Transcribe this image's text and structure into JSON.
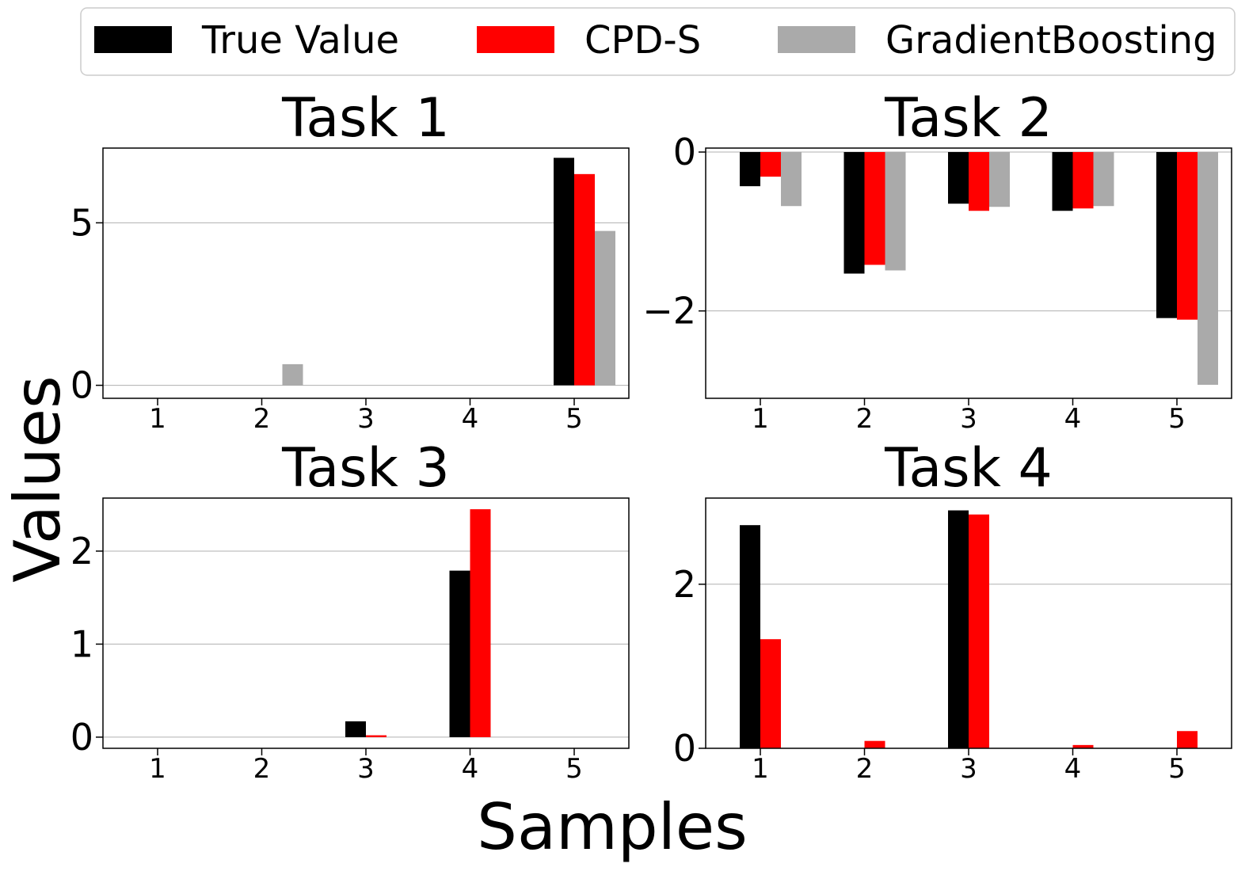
{
  "chart_data": {
    "type": "bar",
    "xlabel": "Samples",
    "ylabel": "Values",
    "categories": [
      "1",
      "2",
      "3",
      "4",
      "5"
    ],
    "series_names": [
      "True Value",
      "CPD-S",
      "GradientBoosting"
    ],
    "colors": {
      "True Value": "#000000",
      "CPD-S": "#ff0000",
      "GradientBoosting": "#aaaaaa"
    },
    "legend_position": "top",
    "grid": "horizontal",
    "panels": [
      {
        "title": "Task 1",
        "ylim": [
          -0.4,
          7.3
        ],
        "yticks": [
          {
            "value": 0,
            "label": "0"
          },
          {
            "value": 5,
            "label": "5"
          }
        ],
        "series": [
          {
            "name": "True Value",
            "values": [
              0,
              0,
              0,
              0,
              7.0
            ]
          },
          {
            "name": "CPD-S",
            "values": [
              0,
              0,
              0,
              0,
              6.5
            ]
          },
          {
            "name": "GradientBoosting",
            "values": [
              0,
              0.65,
              0,
              0,
              4.75
            ]
          }
        ]
      },
      {
        "title": "Task 2",
        "ylim": [
          -3.1,
          0.05
        ],
        "yticks": [
          {
            "value": 0,
            "label": "0"
          },
          {
            "value": -2,
            "label": "−2"
          }
        ],
        "series": [
          {
            "name": "True Value",
            "values": [
              -0.43,
              -1.53,
              -0.65,
              -0.74,
              -2.09
            ]
          },
          {
            "name": "CPD-S",
            "values": [
              -0.31,
              -1.42,
              -0.74,
              -0.71,
              -2.11
            ]
          },
          {
            "name": "GradientBoosting",
            "values": [
              -0.68,
              -1.49,
              -0.69,
              -0.68,
              -2.93
            ]
          }
        ]
      },
      {
        "title": "Task 3",
        "ylim": [
          -0.12,
          2.57
        ],
        "yticks": [
          {
            "value": 0,
            "label": "0"
          },
          {
            "value": 1,
            "label": "1"
          },
          {
            "value": 2,
            "label": "2"
          }
        ],
        "series": [
          {
            "name": "True Value",
            "values": [
              0,
              0,
              0.17,
              1.79,
              0
            ]
          },
          {
            "name": "CPD-S",
            "values": [
              0,
              0,
              0.02,
              2.45,
              0
            ]
          }
        ]
      },
      {
        "title": "Task 4",
        "ylim": [
          0,
          3.05
        ],
        "yticks": [
          {
            "value": 0,
            "label": "0"
          },
          {
            "value": 2,
            "label": "2"
          }
        ],
        "series": [
          {
            "name": "True Value",
            "values": [
              2.72,
              0,
              2.9,
              0,
              0
            ]
          },
          {
            "name": "CPD-S",
            "values": [
              1.33,
              0.09,
              2.85,
              0.04,
              0.21
            ]
          }
        ]
      }
    ]
  }
}
